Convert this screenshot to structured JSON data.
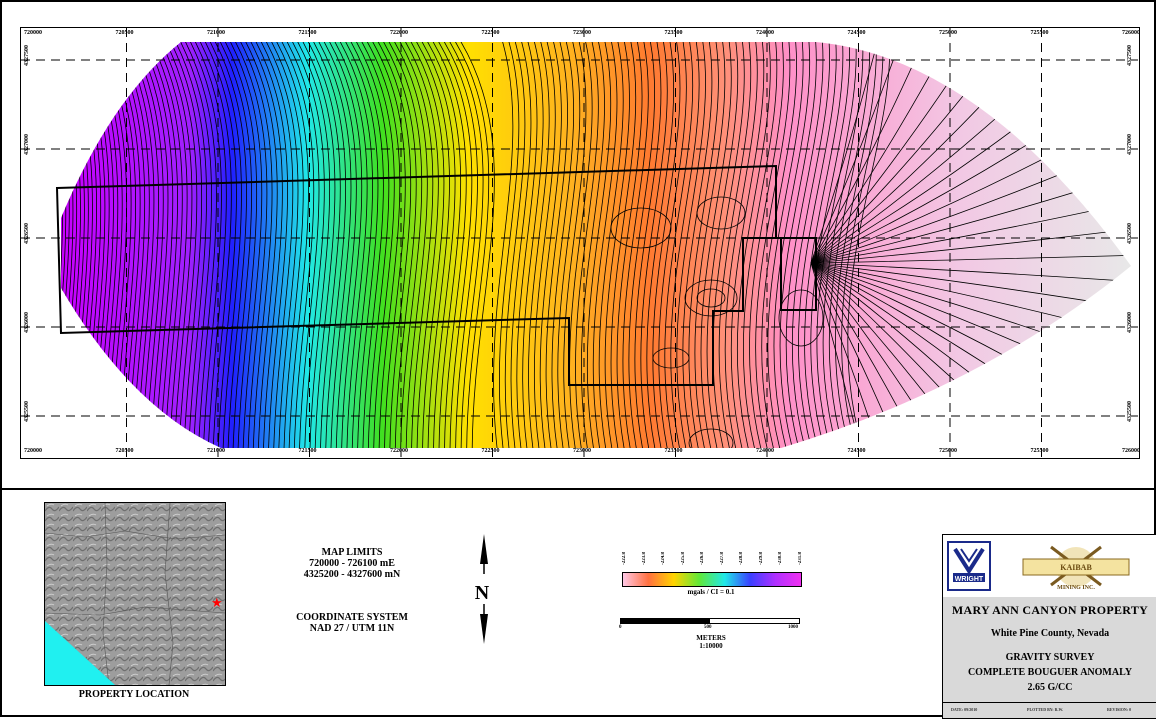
{
  "map": {
    "x_ticks": [
      "720000",
      "720500",
      "721000",
      "721500",
      "722000",
      "722500",
      "723000",
      "723500",
      "724000",
      "724500",
      "725000",
      "725500",
      "726000"
    ],
    "y_ticks": [
      "4327500",
      "4327000",
      "4326500",
      "4326000",
      "4325500"
    ],
    "colors": {
      "far_west": "#c800ff",
      "blue": "#2020ff",
      "cyan": "#20e8e8",
      "green": "#40e020",
      "yellow": "#ffe000",
      "orange": "#ff7a30",
      "pink": "#ff90c8",
      "east_light": "#e8e8e8"
    }
  },
  "location_map": {
    "caption": "PROPERTY LOCATION",
    "marker_color": "#ff0000",
    "water_color": "#20f0f0"
  },
  "map_limits": {
    "title": "MAP LIMITS",
    "easting": "720000 - 726100 mE",
    "northing": "4325200 - 4327600 mN"
  },
  "coordinate_system": {
    "title": "COORDINATE SYSTEM",
    "value": "NAD 27 / UTM 11N"
  },
  "north_arrow": {
    "letter": "N"
  },
  "legend": {
    "ticks": [
      "-222.8",
      "-223.8",
      "-224.8",
      "-225.8",
      "-226.8",
      "-227.8",
      "-228.8",
      "-229.8",
      "-230.8",
      "-231.8"
    ],
    "caption": "mgals / CI = 0.1"
  },
  "scale": {
    "ticks": [
      "0",
      "500",
      "1000"
    ],
    "unit": "METERS",
    "ratio": "1:10000"
  },
  "title_block": {
    "logo_left": "WRIGHT GEOPHYSICS",
    "logo_right": "KAIBAB MINING INC.",
    "project": "MARY ANN CANYON PROPERTY",
    "location": "White Pine County, Nevada",
    "survey_line1": "GRAVITY SURVEY",
    "survey_line2": "COMPLETE BOUGUER ANOMALY",
    "survey_line3": "2.65 G/CC",
    "footer": [
      "DATE: 09/2010",
      "PLOTTED BY: R.W.",
      "REVISION: 0"
    ]
  }
}
